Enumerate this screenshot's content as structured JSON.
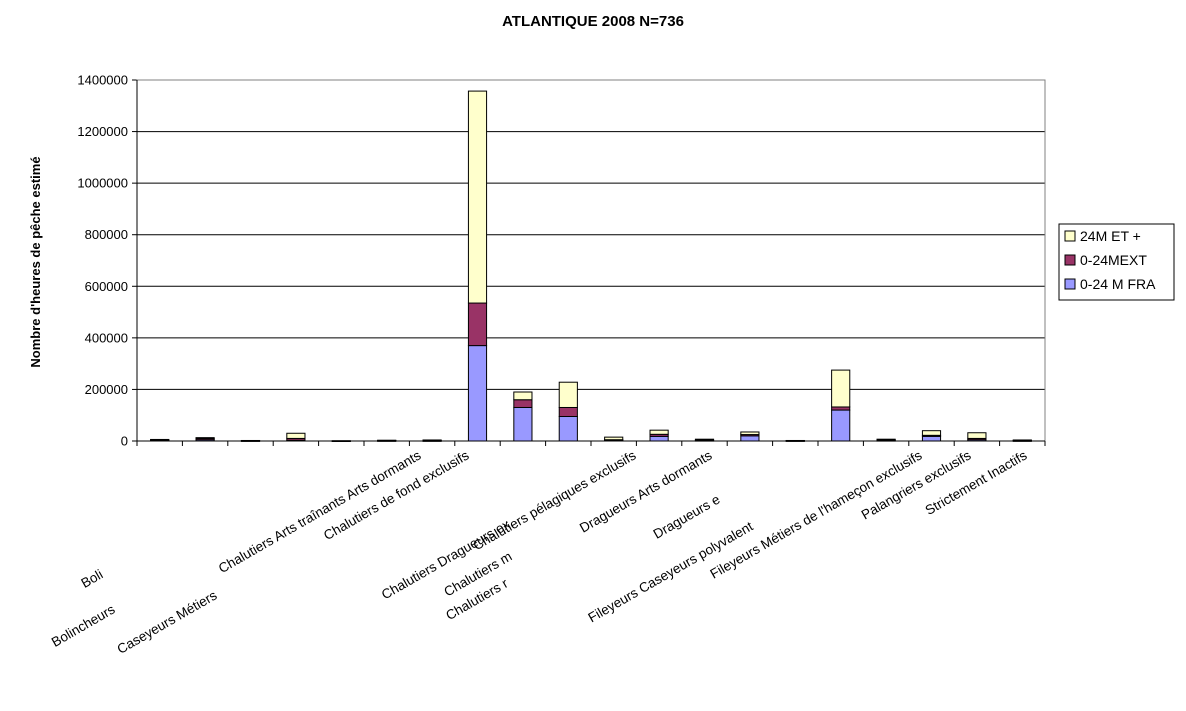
{
  "chart_data": {
    "type": "bar",
    "stacked": true,
    "title": "ATLANTIQUE 2008 N=736",
    "xlabel": "",
    "ylabel": "Nombre d'heures de pêche estimé",
    "ylim": [
      0,
      1400000
    ],
    "yticks": [
      0,
      200000,
      400000,
      600000,
      800000,
      1000000,
      1200000,
      1400000
    ],
    "grid": true,
    "legend_position": "right",
    "categories": [
      "Boli",
      "Bolincheurs",
      "",
      "Caseyeurs Métiers",
      "",
      "Chalutiers Arts traînants Arts dormants",
      "Chalutiers de fond exclusifs",
      "Chalutiers Dragueurs ex",
      "Chalutiers m",
      "Chalutiers r",
      "Chalutiers pélagiques exclusifs",
      "Dragueurs Arts dormants",
      "Dragueurs e",
      "Fileyeurs Caseyeurs polyvalent",
      "",
      "Fileyeurs Métiers de l'hameçon exclusifs",
      "",
      "Palangriers exclusifs",
      "Stricteme nt Inactifs",
      "Strictement Inactifs"
    ],
    "series": [
      {
        "name": "0-24 M FRA",
        "color": "#9999ff",
        "values": [
          3000,
          5000,
          1000,
          3000,
          500,
          1000,
          1000,
          370000,
          130000,
          95000,
          3000,
          18000,
          2000,
          20000,
          1000,
          120000,
          2000,
          18000,
          5000,
          1000
        ]
      },
      {
        "name": "0-24MEXT",
        "color": "#993366",
        "values": [
          2000,
          5000,
          500,
          7000,
          500,
          1000,
          1000,
          165000,
          30000,
          35000,
          2000,
          8000,
          2000,
          5000,
          500,
          12000,
          3000,
          4000,
          5000,
          1000
        ]
      },
      {
        "name": "24M  ET +",
        "color": "#ffffcc",
        "values": [
          1000,
          3000,
          500,
          20000,
          0,
          1000,
          2000,
          822000,
          30000,
          98000,
          10000,
          16000,
          3000,
          10000,
          500,
          143000,
          2000,
          18000,
          22000,
          2000
        ]
      }
    ],
    "category_labels_shown": [
      "Boli",
      "Bolincheurs",
      "Caseyeurs Métiers",
      "Chalutiers Arts traînants Arts dormants",
      "Chalutiers de fond exclusifs",
      "Chalutiers Dragueurs ex",
      "Chalutiers m",
      "Chalutiers r",
      "Chalutiers pélagiques exclusifs",
      "Dragueurs Arts dormants",
      "Dragueurs e",
      "Fileyeurs Caseyeurs polyvalent",
      "Fileyeurs Métiers de l'hameçon exclusifs",
      "Palangriers exclusifs",
      "Strictement Inactifs"
    ]
  }
}
